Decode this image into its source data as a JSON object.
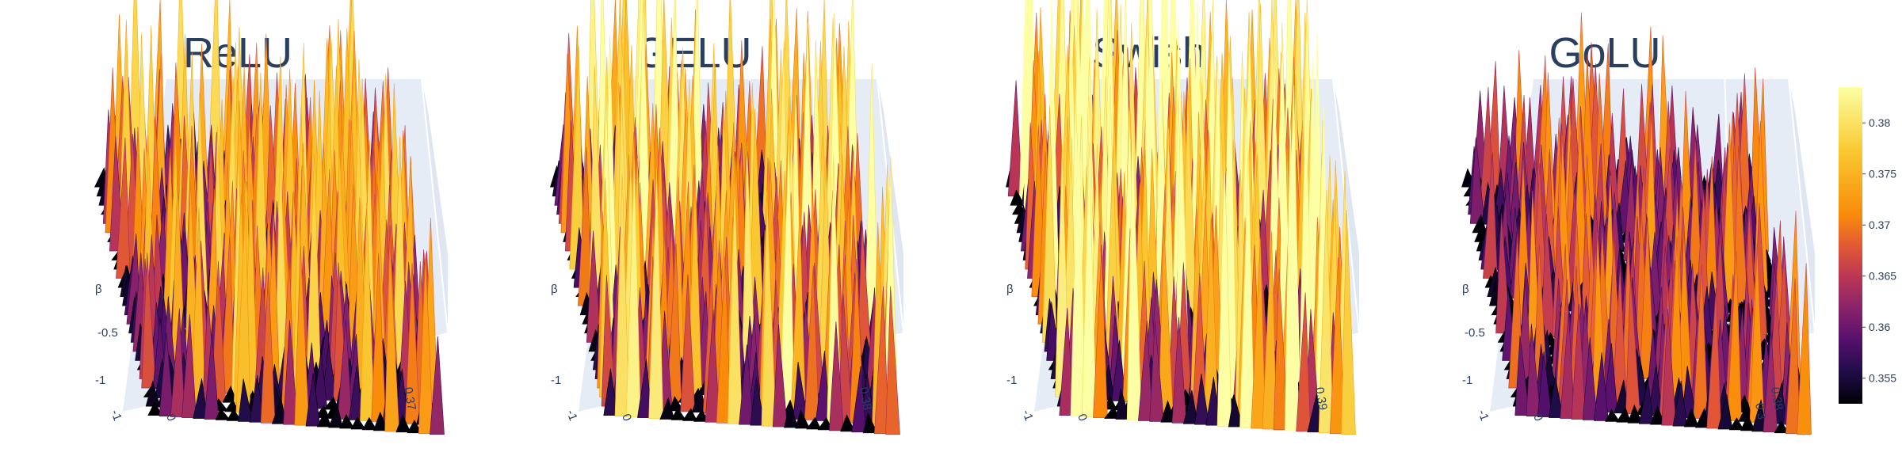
{
  "chart_data": [
    {
      "type": "surface",
      "title": "ReLU",
      "axes": {
        "x_ticks": [
          "-1",
          "0"
        ],
        "y_ticks": [
          "-1"
        ],
        "z_ticks": [
          "0.37"
        ],
        "beta_label": "β",
        "side_tick": "-0.5"
      },
      "surface": {
        "z_range": [
          0.352,
          0.38
        ],
        "grid": 26,
        "seed": 11,
        "spike_scale": 1.0
      }
    },
    {
      "type": "surface",
      "title": "GELU",
      "axes": {
        "x_ticks": [
          "-1",
          "0"
        ],
        "y_ticks": [
          "-1"
        ],
        "z_ticks": [
          "0.38"
        ],
        "beta_label": "β",
        "side_tick": ""
      },
      "surface": {
        "z_range": [
          0.352,
          0.385
        ],
        "grid": 26,
        "seed": 23,
        "spike_scale": 1.0
      }
    },
    {
      "type": "surface",
      "title": "Swish",
      "axes": {
        "x_ticks": [
          "-1",
          "0"
        ],
        "y_ticks": [
          "-1"
        ],
        "z_ticks": [
          "0.39"
        ],
        "beta_label": "β",
        "side_tick": ""
      },
      "surface": {
        "z_range": [
          0.352,
          0.39
        ],
        "grid": 26,
        "seed": 37,
        "spike_scale": 1.0
      }
    },
    {
      "type": "surface",
      "title": "GoLU",
      "axes": {
        "x_ticks": [
          "-1",
          "0"
        ],
        "y_ticks": [
          "-1"
        ],
        "z_ticks": [
          "0.38",
          "0.3"
        ],
        "beta_label": "β",
        "side_tick": "-0.5"
      },
      "surface": {
        "z_range": [
          0.352,
          0.38
        ],
        "grid": 26,
        "seed": 53,
        "spike_scale": 0.75
      }
    }
  ],
  "colorbar": {
    "colorscale": "inferno",
    "range": [
      0.3525,
      0.3835
    ],
    "ticks": [
      "0.355",
      "0.36",
      "0.365",
      "0.37",
      "0.375",
      "0.38"
    ],
    "tick_values": [
      0.355,
      0.36,
      0.365,
      0.37,
      0.375,
      0.38
    ]
  },
  "colors": {
    "title": "#2a3f5f",
    "scene_bg": "#e5ecf6",
    "grid": "#ffffff"
  }
}
